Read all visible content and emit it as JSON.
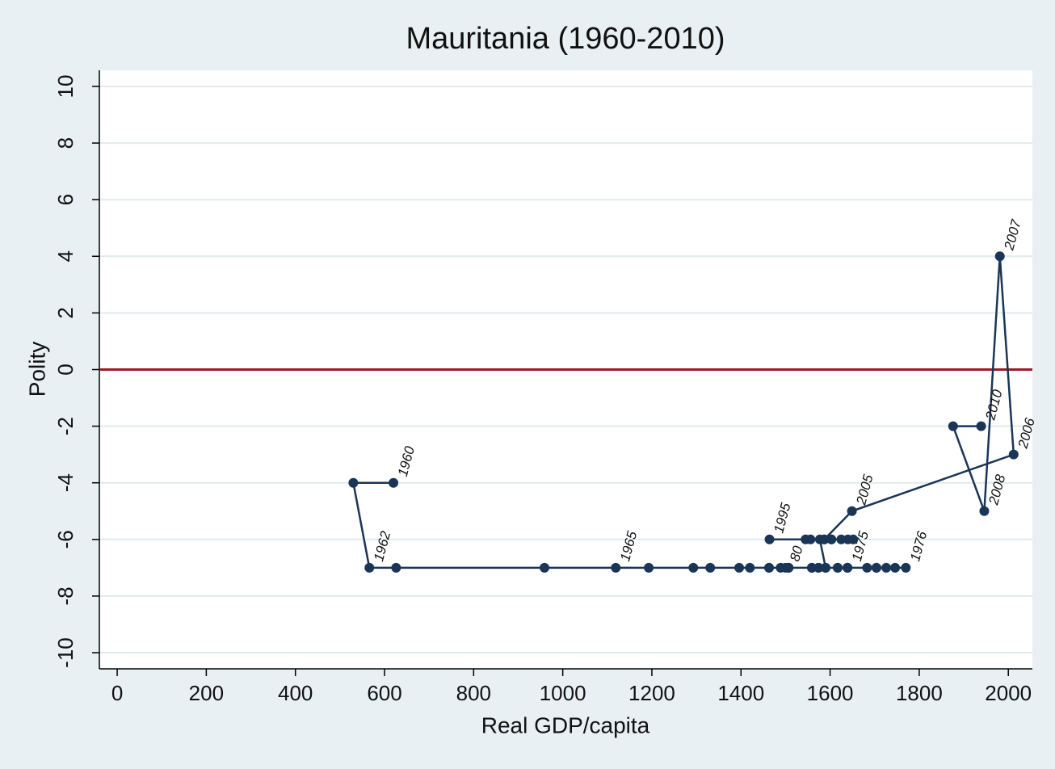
{
  "chart_data": {
    "type": "connected_scatter",
    "title": "Mauritania (1960-2010)",
    "x_label": "Real GDP/capita",
    "y_label": "Polity",
    "xlim": [
      -40,
      2054
    ],
    "ylim": [
      -10.57,
      10.57
    ],
    "xticks": [
      0,
      200,
      400,
      600,
      800,
      1000,
      1200,
      1400,
      1600,
      1800,
      2000
    ],
    "yticks": [
      -10,
      -8,
      -6,
      -4,
      -2,
      0,
      2,
      4,
      6,
      8,
      10
    ],
    "grid": true,
    "hline": 0,
    "hline_color": "#9b1b2a",
    "series": [
      {
        "color": "#1a3556",
        "x": [
          620,
          530,
          566,
          626,
          959,
          1119,
          1193,
          1293,
          1331,
          1396,
          1463,
          1507,
          1559,
          1590,
          1617,
          1639,
          1770,
          1726,
          1704,
          1574,
          1500,
          1489,
          1420,
          1463,
          1507,
          1559,
          1617,
          1639,
          1683,
          1746,
          1704,
          1639,
          1574,
          1590,
          1577,
          1464,
          1545,
          1556,
          1587,
          1603,
          1625,
          1640,
          1652,
          1603,
          1587,
          1649,
          2012,
          1981,
          1946,
          1876,
          1939
        ],
        "values": [
          -4,
          -4,
          -7,
          -7,
          -7,
          -7,
          -7,
          -7,
          -7,
          -7,
          -7,
          -7,
          -7,
          -7,
          -7,
          -7,
          -7,
          -7,
          -7,
          -7,
          -7,
          -7,
          -7,
          -7,
          -7,
          -7,
          -7,
          -7,
          -7,
          -7,
          -7,
          -7,
          -7,
          -7,
          -6,
          -6,
          -6,
          -6,
          -6,
          -6,
          -6,
          -6,
          -6,
          -6,
          -6,
          -5,
          -3,
          4,
          -5,
          -2,
          -2
        ],
        "point_labels": [
          "1960",
          null,
          "1962",
          null,
          null,
          "1965",
          null,
          null,
          null,
          null,
          null,
          null,
          null,
          null,
          null,
          "1975",
          "1976",
          null,
          null,
          null,
          "80",
          null,
          null,
          null,
          null,
          null,
          null,
          null,
          null,
          null,
          null,
          null,
          null,
          null,
          null,
          "1995",
          null,
          null,
          null,
          null,
          null,
          null,
          null,
          null,
          null,
          "2005",
          "2006",
          "2007",
          "2008",
          null,
          "2010"
        ]
      }
    ]
  }
}
